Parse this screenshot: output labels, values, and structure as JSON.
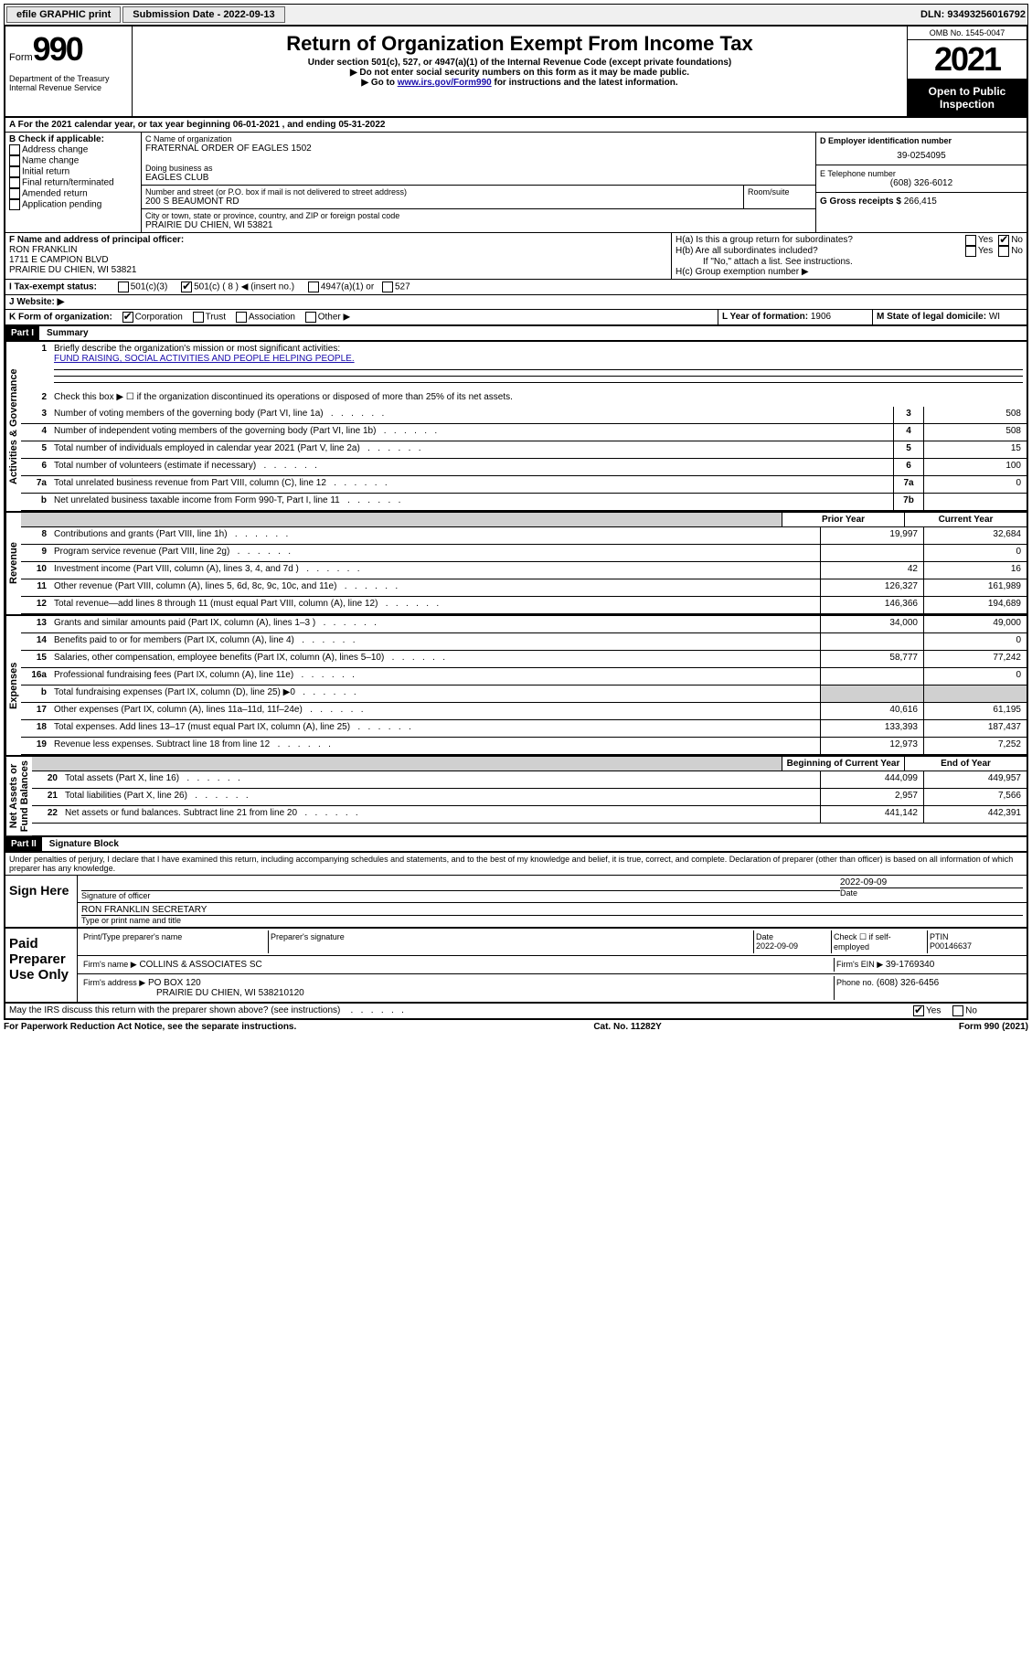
{
  "topbar": {
    "efile": "efile GRAPHIC print",
    "submission_label": "Submission Date - 2022-09-13",
    "dln": "DLN: 93493256016792"
  },
  "header": {
    "form_word": "Form",
    "form_number": "990",
    "dept": "Department of the Treasury\nInternal Revenue Service",
    "title": "Return of Organization Exempt From Income Tax",
    "subtitle1": "Under section 501(c), 527, or 4947(a)(1) of the Internal Revenue Code (except private foundations)",
    "subtitle2": "▶ Do not enter social security numbers on this form as it may be made public.",
    "subtitle3_pre": "▶ Go to ",
    "subtitle3_link": "www.irs.gov/Form990",
    "subtitle3_post": " for instructions and the latest information.",
    "omb": "OMB No. 1545-0047",
    "year": "2021",
    "open": "Open to Public Inspection"
  },
  "period": {
    "text": "A For the 2021 calendar year, or tax year beginning 06-01-2021    , and ending 05-31-2022"
  },
  "boxB": {
    "label": "B Check if applicable:",
    "items": [
      "Address change",
      "Name change",
      "Initial return",
      "Final return/terminated",
      "Amended return",
      "Application pending"
    ]
  },
  "boxC": {
    "label": "C Name of organization",
    "name": "FRATERNAL ORDER OF EAGLES 1502",
    "dba_label": "Doing business as",
    "dba": "EAGLES CLUB",
    "street_label": "Number and street (or P.O. box if mail is not delivered to street address)",
    "room_label": "Room/suite",
    "street": "200 S BEAUMONT RD",
    "city_label": "City or town, state or province, country, and ZIP or foreign postal code",
    "city": "PRAIRIE DU CHIEN, WI  53821"
  },
  "boxD": {
    "label": "D Employer identification number",
    "value": "39-0254095"
  },
  "boxE": {
    "label": "E Telephone number",
    "value": "(608) 326-6012"
  },
  "boxG": {
    "label": "G Gross receipts $",
    "value": "266,415"
  },
  "boxF": {
    "label": "F Name and address of principal officer:",
    "name": "RON FRANKLIN",
    "addr1": "1711 E CAMPION BLVD",
    "addr2": "PRAIRIE DU CHIEN, WI  53821"
  },
  "boxH": {
    "a_label": "H(a)  Is this a group return for subordinates?",
    "b_label": "H(b)  Are all subordinates included?",
    "b_note": "If \"No,\" attach a list. See instructions.",
    "c_label": "H(c)  Group exemption number ▶",
    "yes": "Yes",
    "no": "No"
  },
  "boxI": {
    "label": "I   Tax-exempt status:",
    "opt1": "501(c)(3)",
    "opt2": "501(c) ( 8 ) ◀ (insert no.)",
    "opt3": "4947(a)(1) or",
    "opt4": "527"
  },
  "boxJ": {
    "label": "J   Website: ▶"
  },
  "boxK": {
    "label": "K Form of organization:",
    "opts": [
      "Corporation",
      "Trust",
      "Association",
      "Other ▶"
    ]
  },
  "boxL": {
    "label": "L Year of formation:",
    "value": "1906"
  },
  "boxM": {
    "label": "M State of legal domicile:",
    "value": "WI"
  },
  "part1": {
    "header": "Part I",
    "title": "Summary",
    "vlabels": {
      "gov": "Activities & Governance",
      "rev": "Revenue",
      "exp": "Expenses",
      "net": "Net Assets or\nFund Balances"
    },
    "line1": "Briefly describe the organization's mission or most significant activities:",
    "line1_val": "FUND RAISING, SOCIAL ACTIVITIES AND PEOPLE HELPING PEOPLE.",
    "line2": "Check this box ▶ ☐  if the organization discontinued its operations or disposed of more than 25% of its net assets.",
    "lines_gov": [
      {
        "n": "3",
        "t": "Number of voting members of the governing body (Part VI, line 1a)",
        "r": "3",
        "v": "508"
      },
      {
        "n": "4",
        "t": "Number of independent voting members of the governing body (Part VI, line 1b)",
        "r": "4",
        "v": "508"
      },
      {
        "n": "5",
        "t": "Total number of individuals employed in calendar year 2021 (Part V, line 2a)",
        "r": "5",
        "v": "15"
      },
      {
        "n": "6",
        "t": "Total number of volunteers (estimate if necessary)",
        "r": "6",
        "v": "100"
      },
      {
        "n": "7a",
        "t": "Total unrelated business revenue from Part VIII, column (C), line 12",
        "r": "7a",
        "v": "0"
      },
      {
        "n": "b",
        "t": "Net unrelated business taxable income from Form 990-T, Part I, line 11",
        "r": "7b",
        "v": ""
      }
    ],
    "col_headers": {
      "prior": "Prior Year",
      "current": "Current Year",
      "boy": "Beginning of Current Year",
      "eoy": "End of Year"
    },
    "lines_rev": [
      {
        "n": "8",
        "t": "Contributions and grants (Part VIII, line 1h)",
        "p": "19,997",
        "c": "32,684"
      },
      {
        "n": "9",
        "t": "Program service revenue (Part VIII, line 2g)",
        "p": "",
        "c": "0"
      },
      {
        "n": "10",
        "t": "Investment income (Part VIII, column (A), lines 3, 4, and 7d )",
        "p": "42",
        "c": "16"
      },
      {
        "n": "11",
        "t": "Other revenue (Part VIII, column (A), lines 5, 6d, 8c, 9c, 10c, and 11e)",
        "p": "126,327",
        "c": "161,989"
      },
      {
        "n": "12",
        "t": "Total revenue—add lines 8 through 11 (must equal Part VIII, column (A), line 12)",
        "p": "146,366",
        "c": "194,689"
      }
    ],
    "lines_exp": [
      {
        "n": "13",
        "t": "Grants and similar amounts paid (Part IX, column (A), lines 1–3 )",
        "p": "34,000",
        "c": "49,000"
      },
      {
        "n": "14",
        "t": "Benefits paid to or for members (Part IX, column (A), line 4)",
        "p": "",
        "c": "0"
      },
      {
        "n": "15",
        "t": "Salaries, other compensation, employee benefits (Part IX, column (A), lines 5–10)",
        "p": "58,777",
        "c": "77,242"
      },
      {
        "n": "16a",
        "t": "Professional fundraising fees (Part IX, column (A), line 11e)",
        "p": "",
        "c": "0"
      },
      {
        "n": "b",
        "t": "Total fundraising expenses (Part IX, column (D), line 25) ▶0",
        "p": "GRAY",
        "c": "GRAY"
      },
      {
        "n": "17",
        "t": "Other expenses (Part IX, column (A), lines 11a–11d, 11f–24e)",
        "p": "40,616",
        "c": "61,195"
      },
      {
        "n": "18",
        "t": "Total expenses. Add lines 13–17 (must equal Part IX, column (A), line 25)",
        "p": "133,393",
        "c": "187,437"
      },
      {
        "n": "19",
        "t": "Revenue less expenses. Subtract line 18 from line 12",
        "p": "12,973",
        "c": "7,252"
      }
    ],
    "lines_net": [
      {
        "n": "20",
        "t": "Total assets (Part X, line 16)",
        "p": "444,099",
        "c": "449,957"
      },
      {
        "n": "21",
        "t": "Total liabilities (Part X, line 26)",
        "p": "2,957",
        "c": "7,566"
      },
      {
        "n": "22",
        "t": "Net assets or fund balances. Subtract line 21 from line 20",
        "p": "441,142",
        "c": "442,391"
      }
    ]
  },
  "part2": {
    "header": "Part II",
    "title": "Signature Block",
    "declaration": "Under penalties of perjury, I declare that I have examined this return, including accompanying schedules and statements, and to the best of my knowledge and belief, it is true, correct, and complete. Declaration of preparer (other than officer) is based on all information of which preparer has any knowledge.",
    "sign_here": "Sign Here",
    "sig_officer": "Signature of officer",
    "sig_date": "2022-09-09",
    "date_label": "Date",
    "officer_name": "RON FRANKLIN  SECRETARY",
    "officer_label": "Type or print name and title",
    "paid": "Paid Preparer Use Only",
    "prep_name_label": "Print/Type preparer's name",
    "prep_sig_label": "Preparer's signature",
    "prep_date_label": "Date",
    "prep_date": "2022-09-09",
    "check_self": "Check ☐ if self-employed",
    "ptin_label": "PTIN",
    "ptin": "P00146637",
    "firm_name_label": "Firm's name    ▶",
    "firm_name": "COLLINS & ASSOCIATES SC",
    "firm_ein_label": "Firm's EIN ▶",
    "firm_ein": "39-1769340",
    "firm_addr_label": "Firm's address ▶",
    "firm_addr1": "PO BOX 120",
    "firm_addr2": "PRAIRIE DU CHIEN, WI  538210120",
    "phone_label": "Phone no.",
    "phone": "(608) 326-6456",
    "discuss": "May the IRS discuss this return with the preparer shown above? (see instructions)"
  },
  "footer": {
    "left": "For Paperwork Reduction Act Notice, see the separate instructions.",
    "mid": "Cat. No. 11282Y",
    "right": "Form 990 (2021)"
  }
}
